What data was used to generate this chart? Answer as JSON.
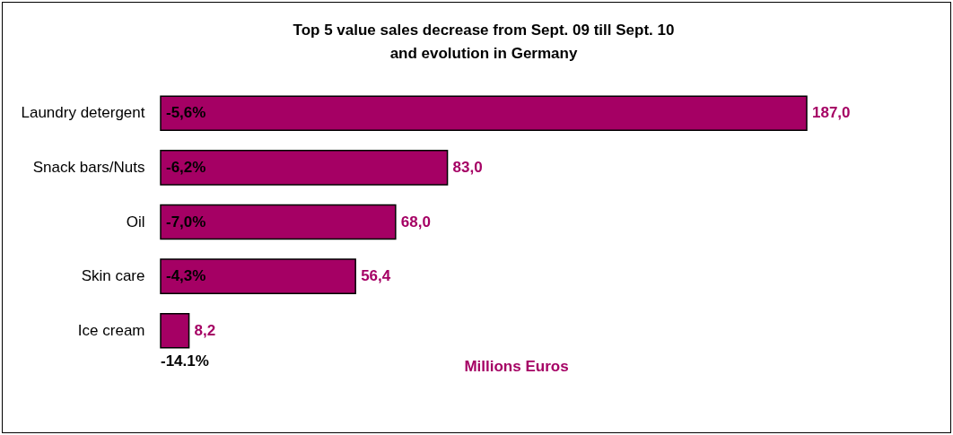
{
  "chart_data": {
    "type": "bar",
    "orientation": "horizontal",
    "title": "Top 5 value sales decrease from Sept. 09 till Sept. 10 and evolution in Germany",
    "xlabel": "Millions Euros",
    "categories": [
      "Laundry detergent",
      "Snack bars/Nuts",
      "Oil",
      "Skin care",
      "Ice cream"
    ],
    "values": [
      187.0,
      83.0,
      68.0,
      56.4,
      8.2
    ],
    "value_labels": [
      "187,0",
      "83,0",
      "68,0",
      "56,4",
      "8,2"
    ],
    "color": "#a50064",
    "annotations": [
      "-5,6%",
      "-6,2%",
      "-7,0%",
      "-4,3%",
      "-14.1%"
    ]
  }
}
